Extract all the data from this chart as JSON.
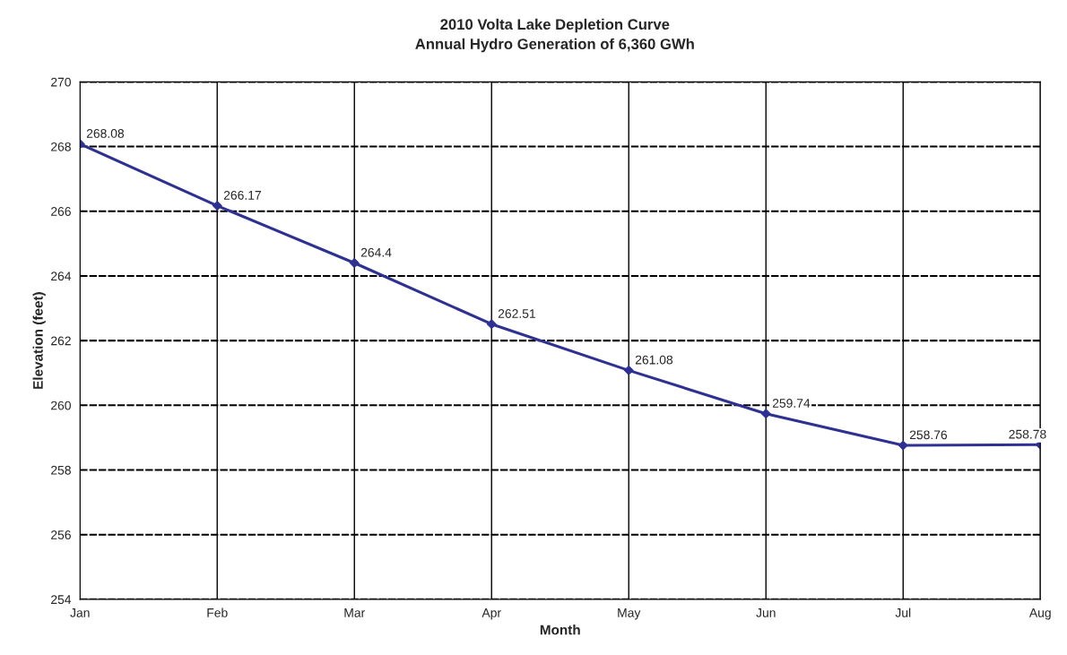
{
  "chart_data": {
    "type": "line",
    "title": "2010 Volta Lake Depletion Curve",
    "subtitle": "Annual Hydro Generation of 6,360 GWh",
    "xlabel": "Month",
    "ylabel": "Elevation (feet)",
    "categories": [
      "Jan",
      "Feb",
      "Mar",
      "Apr",
      "May",
      "Jun",
      "Jul",
      "Aug"
    ],
    "series": [
      {
        "color": "#2e3192",
        "values": [
          268.08,
          266.17,
          264.4,
          262.51,
          261.08,
          259.74,
          258.76,
          258.78
        ]
      }
    ],
    "ylim": [
      254,
      270
    ],
    "yticks": [
      254,
      256,
      258,
      260,
      262,
      264,
      266,
      268,
      270
    ],
    "grid": true,
    "marker": "diamond",
    "line_style": "solid",
    "data_labels": true
  }
}
